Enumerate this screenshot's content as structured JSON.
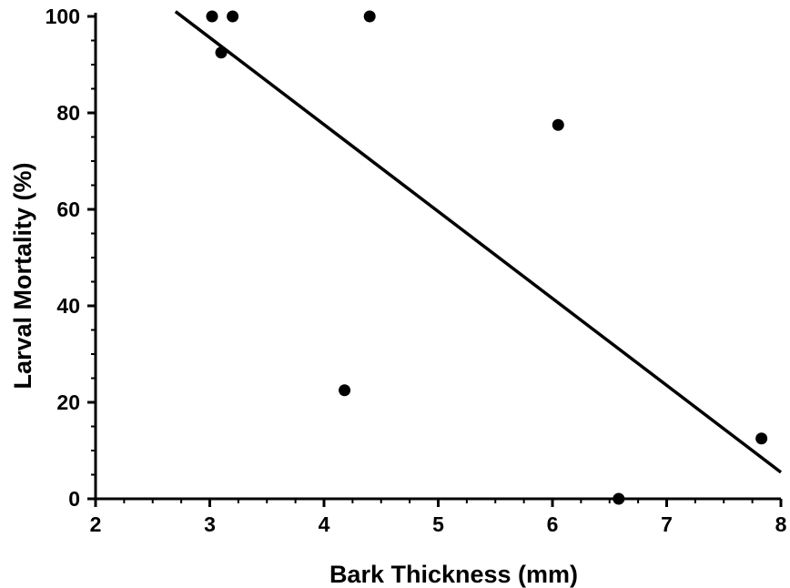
{
  "chart_data": {
    "type": "scatter",
    "title": "",
    "xlabel": "Bark Thickness (mm)",
    "ylabel": "Larval Mortality (%)",
    "xlim": [
      2,
      8
    ],
    "ylim": [
      0,
      100
    ],
    "x_ticks": [
      "2",
      "3",
      "4",
      "5",
      "6",
      "7",
      "8"
    ],
    "y_ticks": [
      "0",
      "20",
      "40",
      "60",
      "80",
      "100"
    ],
    "grid": false,
    "legend": "none",
    "series": [
      {
        "points": [
          {
            "x": 3.02,
            "y": 100
          },
          {
            "x": 3.1,
            "y": 92.5
          },
          {
            "x": 3.2,
            "y": 100
          },
          {
            "x": 4.4,
            "y": 100
          },
          {
            "x": 4.18,
            "y": 22.5
          },
          {
            "x": 6.05,
            "y": 77.5
          },
          {
            "x": 6.58,
            "y": 0
          },
          {
            "x": 7.83,
            "y": 12.5
          }
        ]
      }
    ],
    "trendline": {
      "x": [
        2.7,
        8.0
      ],
      "y": [
        101,
        5.5
      ]
    },
    "colors": {
      "marker": "#000000",
      "line": "#000000",
      "axis": "#000000"
    }
  }
}
